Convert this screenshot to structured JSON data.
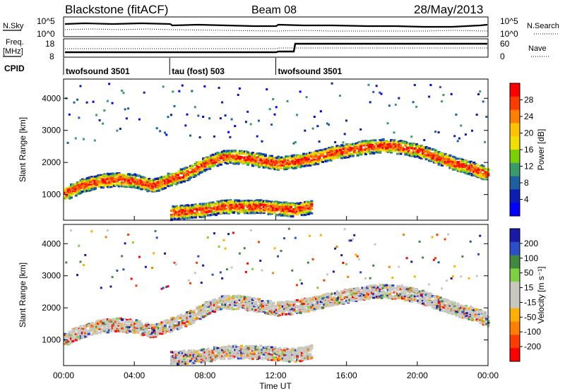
{
  "header": {
    "station": "Blackstone (fitACF)",
    "beam": "Beam 08",
    "date": "28/May/2013"
  },
  "sky_panel": {
    "left_label": "N.Sky",
    "right_label": "N.Search",
    "left_ticks": [
      "10^5",
      "10^0"
    ],
    "right_ticks": [
      "10^5",
      "10^0"
    ]
  },
  "freq_panel": {
    "left_label_1": "Freq.",
    "left_label_2": "[MHz]",
    "right_label": "Nave",
    "left_ticks": [
      "18",
      "8"
    ],
    "right_ticks": [
      "60",
      "0"
    ]
  },
  "cpid": {
    "label": "CPID",
    "segments": [
      {
        "start": 0,
        "end": 6,
        "name": "twofsound 3501"
      },
      {
        "start": 6,
        "end": 12,
        "name": "tau (fost) 503"
      },
      {
        "start": 12,
        "end": 24,
        "name": "twofsound 3501"
      }
    ]
  },
  "chart_data": [
    {
      "type": "heatmap",
      "name": "power",
      "ylabel": "Slant Range [km]",
      "xlim": [
        0,
        24
      ],
      "ylim": [
        200,
        4600
      ],
      "y_ticks": [
        1000,
        2000,
        3000,
        4000
      ],
      "colorbar_label": "Power [dB]",
      "colorbar_ticks": [
        "28",
        "24",
        "20",
        "16",
        "12",
        "8",
        "4"
      ],
      "colorbar_colors": [
        "#ff0000",
        "#ff3c00",
        "#ff7f00",
        "#ffc400",
        "#f0e000",
        "#7ad000",
        "#3a9a6a",
        "#1e5fa0",
        "#0a1eb4",
        "#0000ff"
      ],
      "bands": [
        {
          "x": [
            0,
            1,
            2,
            3,
            4,
            5,
            6,
            7,
            8,
            9,
            10,
            11,
            12,
            13,
            14,
            15,
            16,
            17,
            18,
            19,
            20,
            21,
            22,
            23,
            24
          ],
          "y": [
            1050,
            1300,
            1450,
            1500,
            1450,
            1300,
            1500,
            1700,
            2000,
            2200,
            2200,
            2100,
            2000,
            2050,
            2150,
            2300,
            2400,
            2500,
            2550,
            2500,
            2400,
            2200,
            2000,
            1850,
            1650
          ]
        },
        {
          "x": [
            6,
            7,
            8,
            9,
            10,
            11,
            12,
            13,
            14
          ],
          "y": [
            450,
            500,
            550,
            650,
            650,
            650,
            600,
            550,
            650
          ]
        }
      ]
    },
    {
      "type": "heatmap",
      "name": "velocity",
      "ylabel": "Slant Range [km]",
      "xlabel": "Time UT",
      "xlim": [
        0,
        24
      ],
      "ylim": [
        200,
        4600
      ],
      "y_ticks": [
        1000,
        2000,
        3000,
        4000
      ],
      "x_ticks": [
        "00:00",
        "04:00",
        "08:00",
        "12:00",
        "16:00",
        "20:00",
        "00:00"
      ],
      "colorbar_label": "Velocity [m s⁻¹]",
      "colorbar_ticks": [
        "200",
        "100",
        "50",
        "15",
        "-15",
        "-50",
        "-100",
        "-200"
      ],
      "colorbar_colors": [
        "#1a1aa8",
        "#2a4fc8",
        "#3f8a3f",
        "#7fd040",
        "#c8c8c0",
        "#c8c8c0",
        "#ffb000",
        "#ff7f00",
        "#ff3c00",
        "#ff0000"
      ]
    }
  ]
}
